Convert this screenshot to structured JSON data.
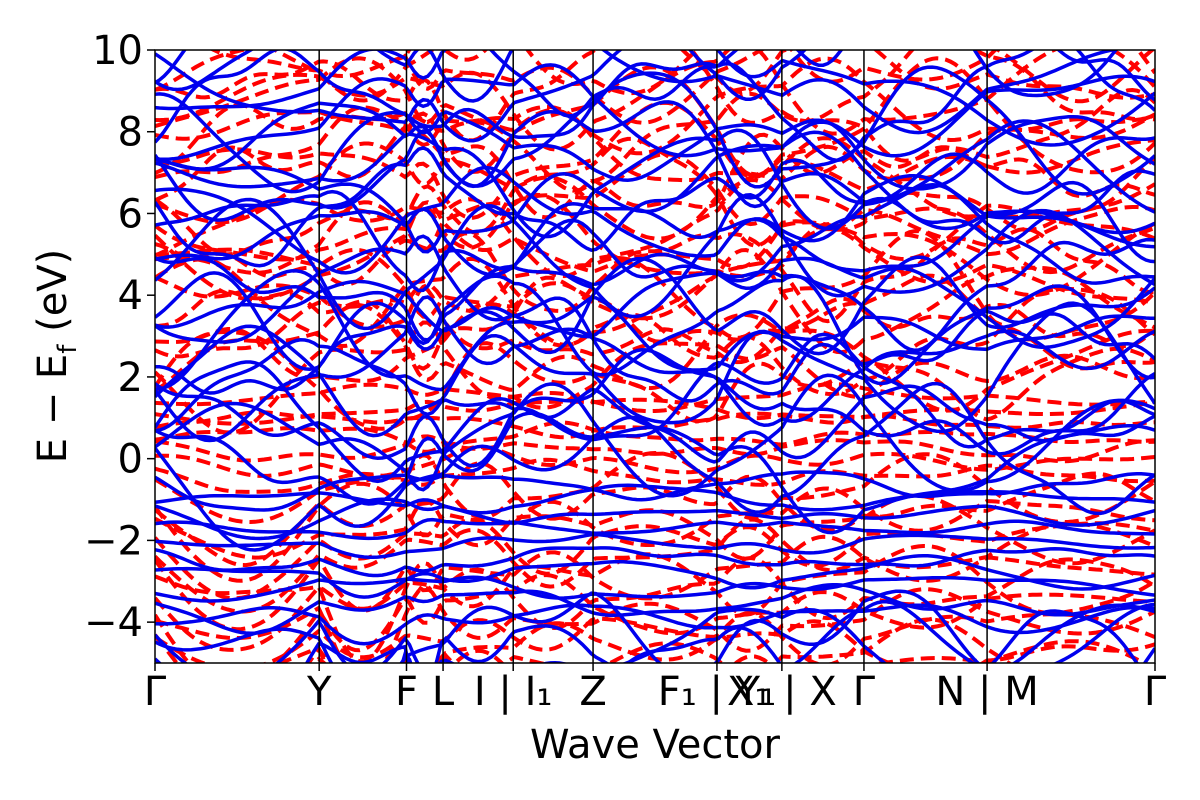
{
  "chart_data": {
    "type": "line",
    "title": "",
    "xlabel": "Wave Vector",
    "ylabel": "E − E_f (eV)",
    "ylabel_main": "E − E",
    "ylabel_sub": "f",
    "ylabel_unit": " (eV)",
    "ylim": [
      -5,
      10
    ],
    "yticks": [
      10,
      8,
      6,
      4,
      2,
      0,
      -2,
      -4
    ],
    "ytick_labels": [
      "10",
      "8",
      "6",
      "4",
      "2",
      "0",
      "−2",
      "−4"
    ],
    "xlim": [
      0,
      13.4
    ],
    "kpoints": [
      {
        "label": "Γ",
        "x": 0.0
      },
      {
        "label": "Y",
        "x": 2.2
      },
      {
        "label": "F",
        "x": 3.37
      },
      {
        "label": "L",
        "x": 3.86
      },
      {
        "label": "I | I₁",
        "x": 4.8
      },
      {
        "label": "Z",
        "x": 5.87
      },
      {
        "label": "F₁ | Y₁",
        "x": 7.53
      },
      {
        "label": "X₁ | X",
        "x": 8.4
      },
      {
        "label": "Γ",
        "x": 9.5
      },
      {
        "label": "N | M",
        "x": 11.15
      },
      {
        "label": "Γ",
        "x": 13.4
      }
    ],
    "grid": false,
    "legend": "none",
    "series": [
      {
        "style": "solid",
        "color": "#0000ee"
      },
      {
        "style": "dashed",
        "color": "#ff0000"
      }
    ]
  }
}
